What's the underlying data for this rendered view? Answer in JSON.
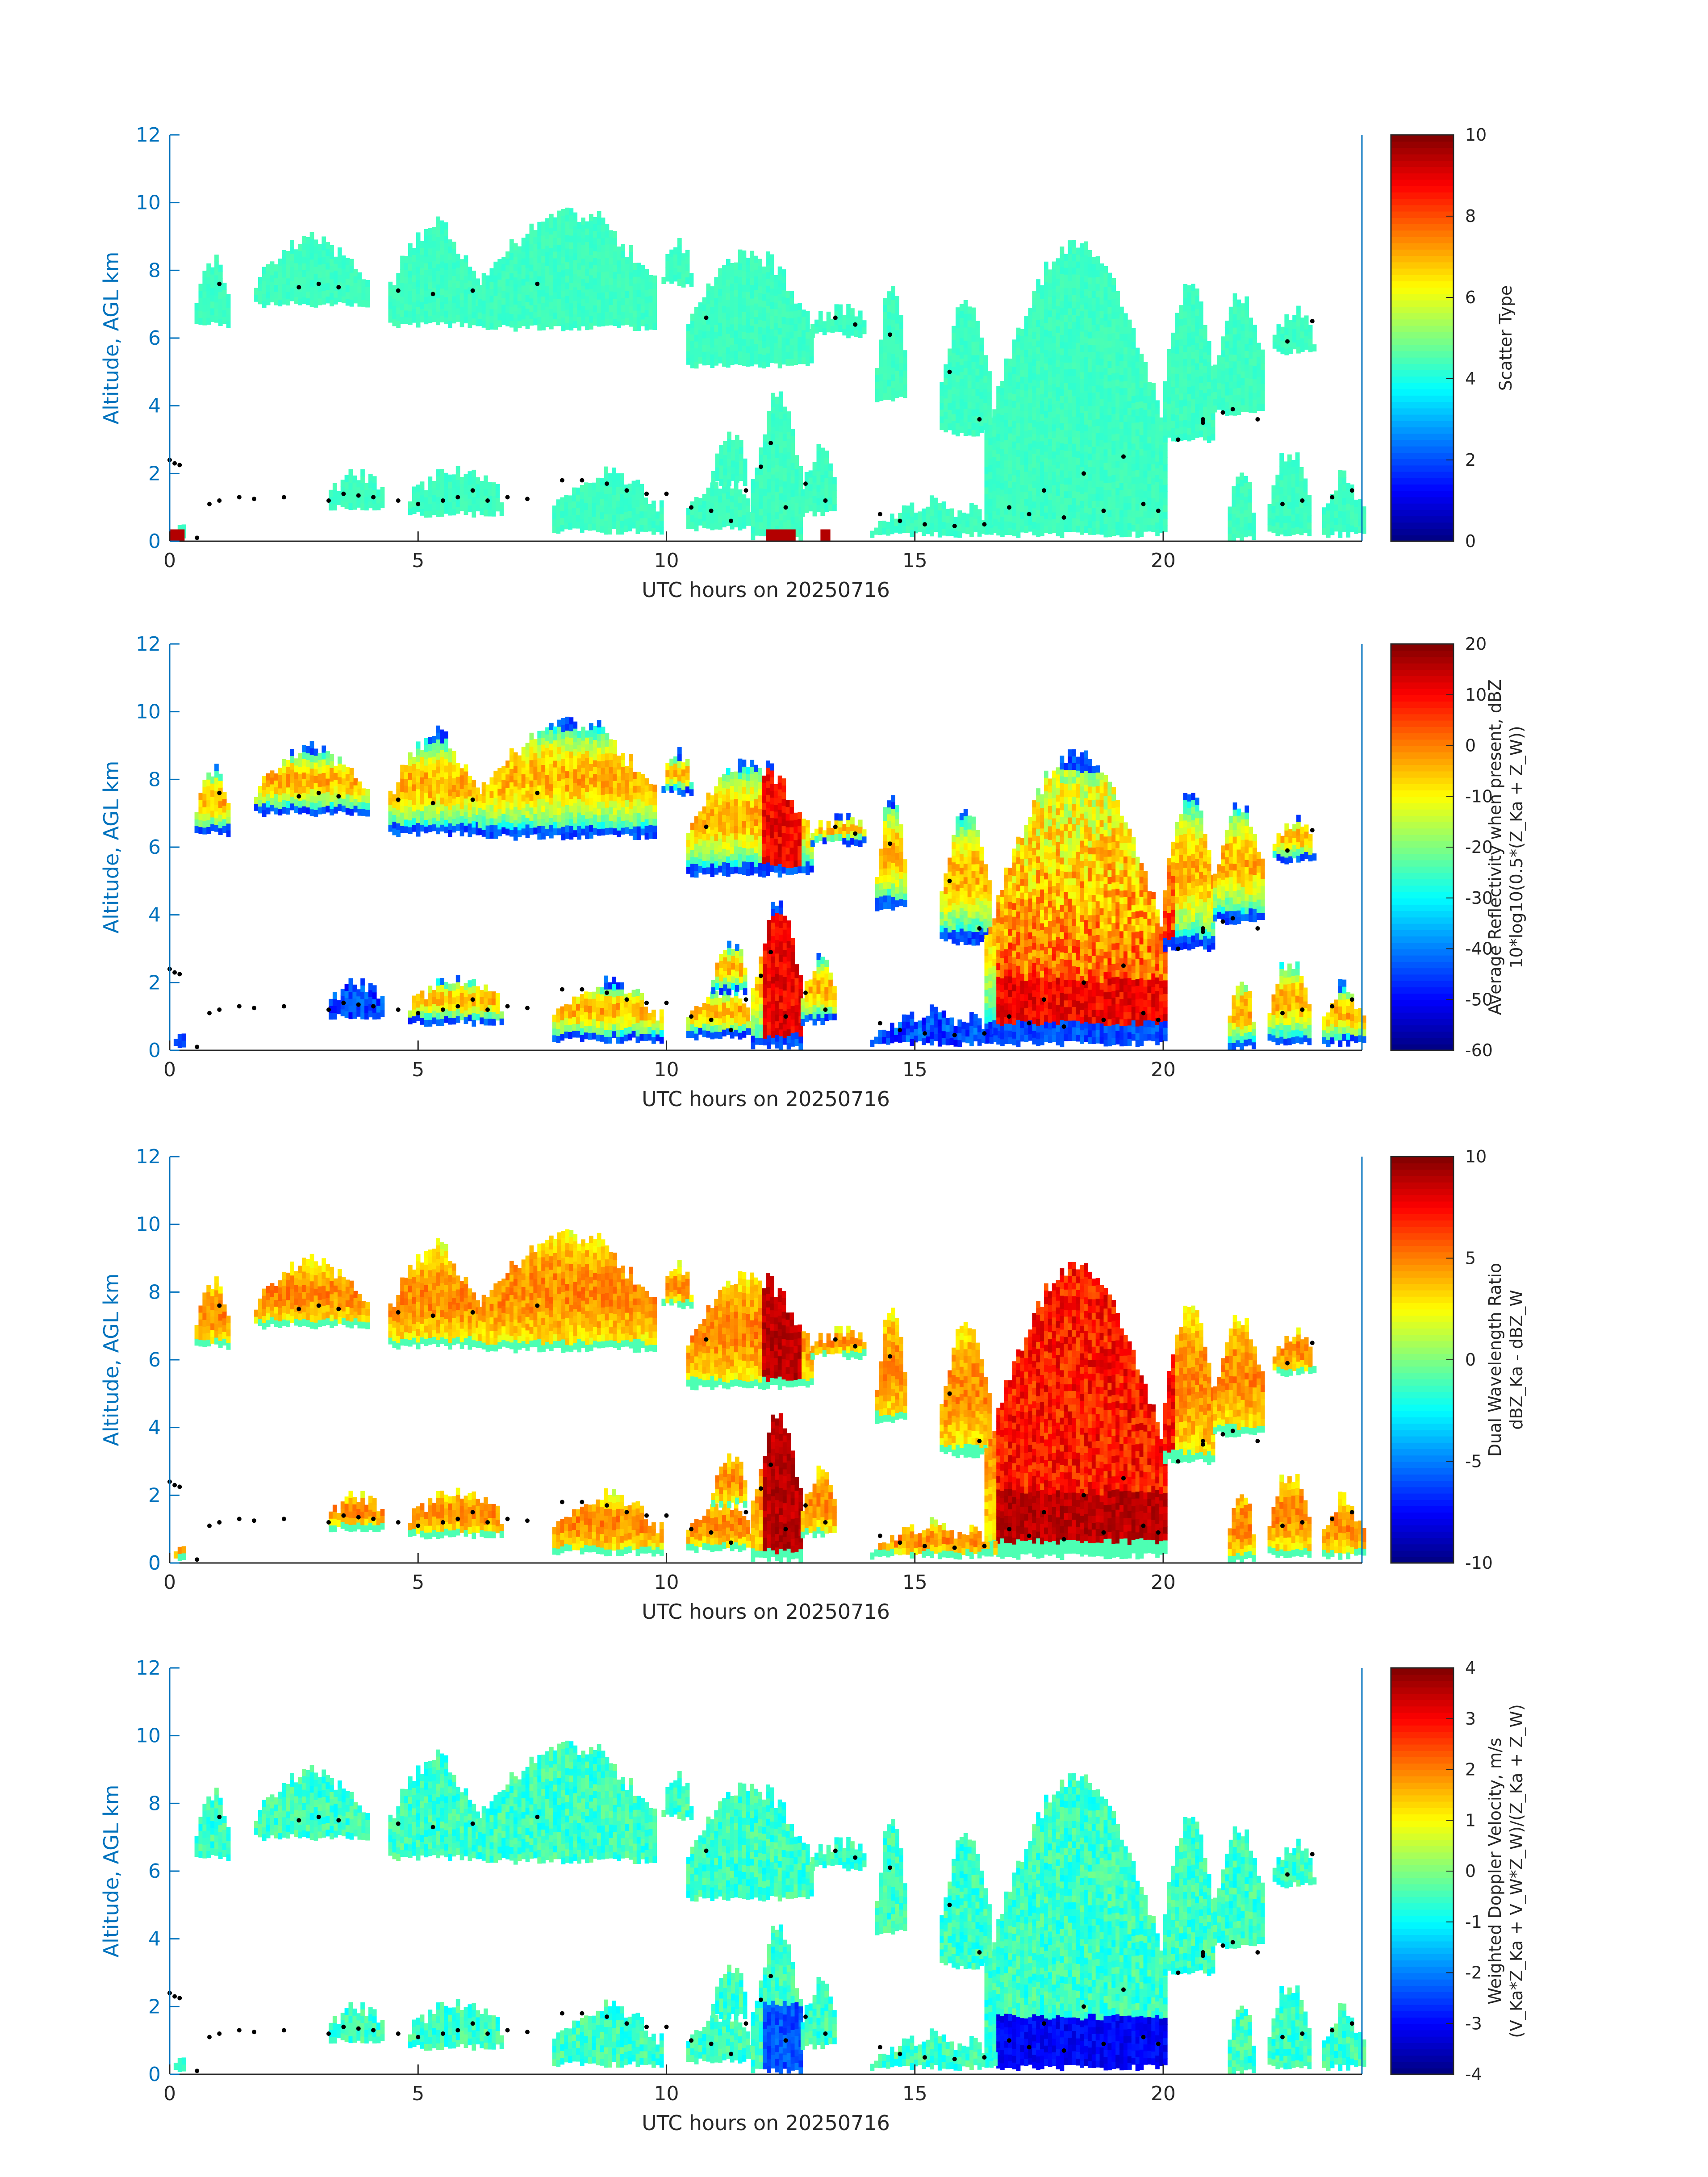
{
  "figure": {
    "xlabel": "UTC hours on 20250716",
    "ylabel": "Altitude, AGL km",
    "xticks": [
      "0",
      "5",
      "10",
      "15",
      "20"
    ],
    "yticks": [
      "0",
      "2",
      "4",
      "6",
      "8",
      "10",
      "12"
    ],
    "axis_color": "#0072BD",
    "cloud_base_color": "#000000"
  },
  "chart_data": [
    {
      "type": "heatmap",
      "title": "",
      "xlabel": "UTC hours on 20250716",
      "ylabel": "Altitude, AGL km",
      "xlim": [
        0,
        24
      ],
      "ylim": [
        0,
        12
      ],
      "colormap": "jet",
      "colorbar": {
        "label_lines": [
          "Scatter Type"
        ],
        "ticks": [
          "0",
          "2",
          "4",
          "6",
          "8",
          "10"
        ],
        "range": [
          0,
          10
        ]
      },
      "field_value_dominant": 4,
      "surface_value": 9.5
    },
    {
      "type": "heatmap",
      "title": "",
      "xlabel": "UTC hours on 20250716",
      "ylabel": "Altitude, AGL km",
      "xlim": [
        0,
        24
      ],
      "ylim": [
        0,
        12
      ],
      "colormap": "jet",
      "colorbar": {
        "label_lines": [
          "Average Reflectivity when present, dBZ",
          "10*log10(0.5*(Z_Ka + Z_W))"
        ],
        "ticks": [
          "-60",
          "-50",
          "-40",
          "-30",
          "-20",
          "-10",
          "0",
          "10",
          "20"
        ],
        "range": [
          -60,
          20
        ]
      }
    },
    {
      "type": "heatmap",
      "title": "",
      "xlabel": "UTC hours on 20250716",
      "ylabel": "Altitude, AGL km",
      "xlim": [
        0,
        24
      ],
      "ylim": [
        0,
        12
      ],
      "colormap": "jet",
      "colorbar": {
        "label_lines": [
          "Dual Wavelength Ratio",
          "dBZ_Ka - dBZ_W"
        ],
        "ticks": [
          "-10",
          "-5",
          "0",
          "5",
          "10"
        ],
        "range": [
          -10,
          10
        ]
      }
    },
    {
      "type": "heatmap",
      "title": "",
      "xlabel": "UTC hours on 20250716",
      "ylabel": "Altitude, AGL km",
      "xlim": [
        0,
        24
      ],
      "ylim": [
        0,
        12
      ],
      "colormap": "jet",
      "colorbar": {
        "label_lines": [
          "Weighted Doppler Velocity, m/s",
          "(V_Ka*Z_Ka + V_W*Z_W)/(Z_Ka + Z_W)"
        ],
        "ticks": [
          "-4",
          "-3",
          "-2",
          "-1",
          "0",
          "1",
          "2",
          "3",
          "4"
        ],
        "range": [
          -4,
          4
        ]
      }
    }
  ],
  "cloud_layers": [
    {
      "t0": 0.5,
      "t1": 1.2,
      "base": 6.4,
      "top": 8.2
    },
    {
      "t0": 1.7,
      "t1": 4.0,
      "base": 7.0,
      "top": 8.8
    },
    {
      "t0": 4.4,
      "t1": 6.2,
      "base": 6.4,
      "top": 9.2
    },
    {
      "t0": 6.2,
      "t1": 9.8,
      "base": 6.3,
      "top": 9.6
    },
    {
      "t0": 9.9,
      "t1": 10.5,
      "base": 7.6,
      "top": 8.6
    },
    {
      "t0": 10.4,
      "t1": 12.9,
      "base": 5.2,
      "top": 8.4
    },
    {
      "t0": 12.9,
      "t1": 14.0,
      "base": 6.1,
      "top": 6.8
    },
    {
      "t0": 14.2,
      "t1": 14.8,
      "base": 4.2,
      "top": 7.3
    },
    {
      "t0": 15.5,
      "t1": 16.5,
      "base": 3.2,
      "top": 7.0
    },
    {
      "t0": 16.4,
      "t1": 20.0,
      "base": 0.2,
      "top": 8.7
    },
    {
      "t0": 20.0,
      "t1": 21.0,
      "base": 3.0,
      "top": 7.5
    },
    {
      "t0": 21.0,
      "t1": 22.0,
      "base": 3.8,
      "top": 7.2
    },
    {
      "t0": 22.2,
      "t1": 23.0,
      "base": 5.6,
      "top": 6.8
    },
    {
      "t0": 0.0,
      "t1": 0.3,
      "base": 0.1,
      "top": 0.4
    },
    {
      "t0": 3.2,
      "t1": 4.3,
      "base": 1.0,
      "top": 1.9
    },
    {
      "t0": 4.8,
      "t1": 6.7,
      "base": 0.8,
      "top": 2.0
    },
    {
      "t0": 7.7,
      "t1": 9.9,
      "base": 0.3,
      "top": 1.9
    },
    {
      "t0": 10.4,
      "t1": 11.7,
      "base": 0.4,
      "top": 1.7
    },
    {
      "t0": 10.9,
      "t1": 11.6,
      "base": 1.7,
      "top": 3.0
    },
    {
      "t0": 11.7,
      "t1": 12.7,
      "base": 0.1,
      "top": 4.2
    },
    {
      "t0": 12.7,
      "t1": 13.4,
      "base": 0.8,
      "top": 2.7
    },
    {
      "t0": 14.1,
      "t1": 16.6,
      "base": 0.2,
      "top": 1.0
    },
    {
      "t0": 21.3,
      "t1": 21.8,
      "base": 0.1,
      "top": 2.1
    },
    {
      "t0": 22.1,
      "t1": 22.9,
      "base": 0.2,
      "top": 2.6
    },
    {
      "t0": 23.2,
      "t1": 24.0,
      "base": 0.2,
      "top": 1.8
    }
  ],
  "cloud_base_points": [
    {
      "t": 0.0,
      "h": 2.4
    },
    {
      "t": 0.1,
      "h": 2.3
    },
    {
      "t": 0.2,
      "h": 2.25
    },
    {
      "t": 0.55,
      "h": 0.1
    },
    {
      "t": 0.8,
      "h": 1.1
    },
    {
      "t": 1.0,
      "h": 1.2
    },
    {
      "t": 1.4,
      "h": 1.3
    },
    {
      "t": 1.7,
      "h": 1.25
    },
    {
      "t": 2.3,
      "h": 1.3
    },
    {
      "t": 3.2,
      "h": 1.2
    },
    {
      "t": 3.5,
      "h": 1.4
    },
    {
      "t": 3.8,
      "h": 1.35
    },
    {
      "t": 4.1,
      "h": 1.3
    },
    {
      "t": 4.6,
      "h": 1.2
    },
    {
      "t": 5.0,
      "h": 1.1
    },
    {
      "t": 5.5,
      "h": 1.2
    },
    {
      "t": 5.8,
      "h": 1.3
    },
    {
      "t": 6.1,
      "h": 1.5
    },
    {
      "t": 6.4,
      "h": 1.2
    },
    {
      "t": 6.8,
      "h": 1.3
    },
    {
      "t": 7.2,
      "h": 1.25
    },
    {
      "t": 7.9,
      "h": 1.8
    },
    {
      "t": 8.3,
      "h": 1.8
    },
    {
      "t": 8.8,
      "h": 1.7
    },
    {
      "t": 9.2,
      "h": 1.5
    },
    {
      "t": 9.6,
      "h": 1.4
    },
    {
      "t": 10.0,
      "h": 1.4
    },
    {
      "t": 10.5,
      "h": 1.0
    },
    {
      "t": 10.9,
      "h": 0.9
    },
    {
      "t": 11.3,
      "h": 0.6
    },
    {
      "t": 11.6,
      "h": 1.5
    },
    {
      "t": 11.9,
      "h": 2.2
    },
    {
      "t": 12.1,
      "h": 2.9
    },
    {
      "t": 12.4,
      "h": 1.0
    },
    {
      "t": 12.8,
      "h": 1.7
    },
    {
      "t": 13.2,
      "h": 1.2
    },
    {
      "t": 14.3,
      "h": 0.8
    },
    {
      "t": 14.7,
      "h": 0.6
    },
    {
      "t": 15.2,
      "h": 0.5
    },
    {
      "t": 15.8,
      "h": 0.45
    },
    {
      "t": 16.4,
      "h": 0.5
    },
    {
      "t": 16.9,
      "h": 1.0
    },
    {
      "t": 17.3,
      "h": 0.8
    },
    {
      "t": 17.6,
      "h": 1.5
    },
    {
      "t": 18.0,
      "h": 0.7
    },
    {
      "t": 18.4,
      "h": 2.0
    },
    {
      "t": 18.8,
      "h": 0.9
    },
    {
      "t": 19.2,
      "h": 2.5
    },
    {
      "t": 19.6,
      "h": 1.1
    },
    {
      "t": 19.9,
      "h": 0.9
    },
    {
      "t": 20.3,
      "h": 3.0
    },
    {
      "t": 20.8,
      "h": 3.6
    },
    {
      "t": 21.4,
      "h": 3.9
    },
    {
      "t": 21.9,
      "h": 3.6
    },
    {
      "t": 22.4,
      "h": 1.1
    },
    {
      "t": 22.8,
      "h": 1.2
    },
    {
      "t": 23.4,
      "h": 1.3
    },
    {
      "t": 23.8,
      "h": 1.5
    },
    {
      "t": 1.0,
      "h": 7.6
    },
    {
      "t": 2.6,
      "h": 7.5
    },
    {
      "t": 3.0,
      "h": 7.6
    },
    {
      "t": 3.4,
      "h": 7.5
    },
    {
      "t": 4.6,
      "h": 7.4
    },
    {
      "t": 5.3,
      "h": 7.3
    },
    {
      "t": 6.1,
      "h": 7.4
    },
    {
      "t": 7.4,
      "h": 7.6
    },
    {
      "t": 10.8,
      "h": 6.6
    },
    {
      "t": 13.4,
      "h": 6.6
    },
    {
      "t": 13.8,
      "h": 6.4
    },
    {
      "t": 14.5,
      "h": 6.1
    },
    {
      "t": 15.7,
      "h": 5.0
    },
    {
      "t": 16.3,
      "h": 3.6
    },
    {
      "t": 20.8,
      "h": 3.5
    },
    {
      "t": 21.2,
      "h": 3.8
    },
    {
      "t": 22.5,
      "h": 5.9
    },
    {
      "t": 23.0,
      "h": 6.5
    }
  ]
}
